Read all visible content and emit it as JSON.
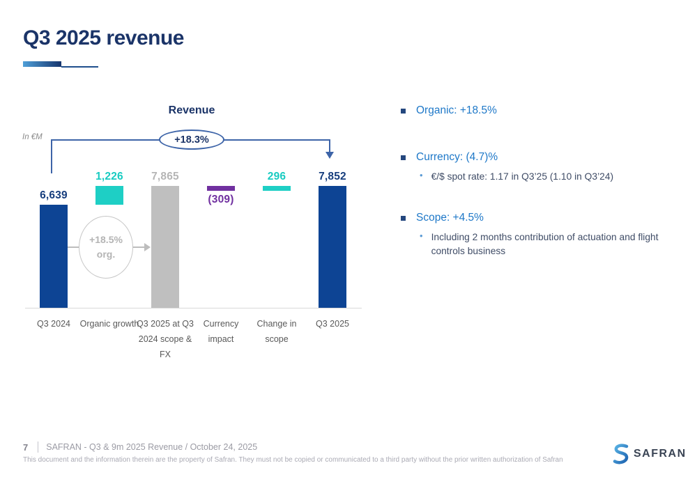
{
  "slide": {
    "title": "Q3 2025 revenue",
    "footer": {
      "page_number": "7",
      "doc_ref": "SAFRAN - Q3 & 9m 2025 Revenue / October 24, 2025",
      "disclaimer": "This document and the information therein are the property of Safran. They must not be copied or communicated to a third party without the prior written authorization of Safran",
      "logo_text": "SAFRAN"
    }
  },
  "chart_data": {
    "type": "bar",
    "subtype": "waterfall",
    "title": "Revenue",
    "unit_label": "In €M",
    "growth_annotation": "+18.3%",
    "organic_annotation": [
      "+18.5%",
      "org."
    ],
    "categories": [
      "Q3 2024",
      "Organic growth",
      "Q3 2025 at Q3 2024 scope & FX",
      "Currency impact",
      "Change in scope",
      "Q3 2025"
    ],
    "values": [
      6639,
      1226,
      7865,
      -309,
      296,
      7852
    ],
    "ylim": [
      0,
      7865
    ],
    "grid": false,
    "bars": [
      {
        "label": "Q3 2024",
        "display": "6,639",
        "value": 6639,
        "start": 0,
        "end": 6639,
        "color": "navy",
        "label_pos": "above"
      },
      {
        "label": "Organic growth",
        "display": "1,226",
        "value": 1226,
        "start": 6639,
        "end": 7865,
        "color": "teal",
        "label_pos": "above"
      },
      {
        "label": "Q3 2025 at Q3 2024 scope & FX",
        "display": "7,865",
        "value": 7865,
        "start": 0,
        "end": 7865,
        "color": "gray",
        "label_pos": "above"
      },
      {
        "label": "Currency impact",
        "display": "(309)",
        "value": -309,
        "start": 7556,
        "end": 7865,
        "color": "purple",
        "label_pos": "below"
      },
      {
        "label": "Change in scope",
        "display": "296",
        "value": 296,
        "start": 7556,
        "end": 7852,
        "color": "teal",
        "label_pos": "above"
      },
      {
        "label": "Q3 2025",
        "display": "7,852",
        "value": 7852,
        "start": 0,
        "end": 7852,
        "color": "navy",
        "label_pos": "above"
      }
    ],
    "colors": {
      "navy": "#0d4494",
      "teal": "#1ecfc5",
      "gray": "#bfbfbf",
      "purple": "#7030a0"
    },
    "label_colors": {
      "navy": "#163d7d",
      "teal": "#18cbc1",
      "gray": "#b5b5b5",
      "purple": "#7030a0"
    }
  },
  "bullets": [
    {
      "label": "Organic: +18.5%",
      "subs": []
    },
    {
      "label": "Currency: (4.7)%",
      "subs": [
        "€/$ spot rate: 1.17 in Q3’25 (1.10 in Q3’24)"
      ]
    },
    {
      "label": "Scope: +4.5%",
      "subs": [
        "Including 2 months contribution of actuation and flight controls business"
      ]
    }
  ]
}
